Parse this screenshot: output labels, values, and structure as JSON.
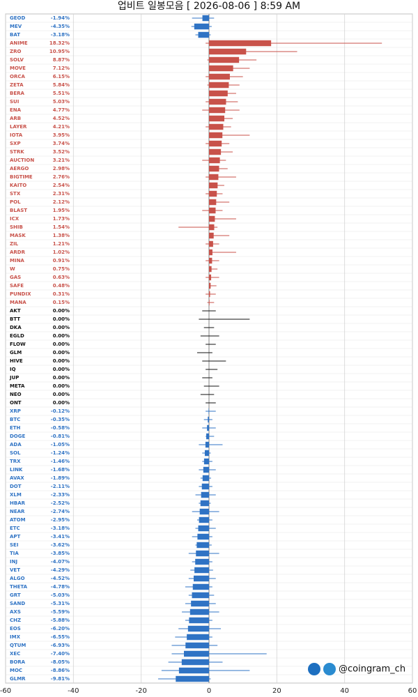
{
  "chart_data": {
    "type": "bar",
    "orientation": "horizontal",
    "title": "업비트 일봉모음 [ 2026-08-06 ]  8:59 AM",
    "watermark": "@coingram_ch",
    "categories": [
      "GEOD",
      "MEV",
      "BAT",
      "ANIME",
      "ZRO",
      "SOLV",
      "MOVE",
      "ORCA",
      "ZETA",
      "BERA",
      "SUI",
      "ENA",
      "ARB",
      "LAYER",
      "IOTA",
      "SXP",
      "STRK",
      "AUCTION",
      "AERGO",
      "BIGTIME",
      "KAITO",
      "STX",
      "POL",
      "BLAST",
      "ICX",
      "SHIB",
      "MASK",
      "ZIL",
      "ARDR",
      "MINA",
      "W",
      "GAS",
      "SAFE",
      "PUNDIX",
      "MANA",
      "AKT",
      "BTT",
      "DKA",
      "EGLD",
      "FLOW",
      "GLM",
      "HIVE",
      "IQ",
      "JUP",
      "META",
      "NEO",
      "ONT",
      "XRP",
      "BTC",
      "ETH",
      "DOGE",
      "ADA",
      "SOL",
      "TRX",
      "LINK",
      "AVAX",
      "DOT",
      "XLM",
      "HBAR",
      "NEAR",
      "ATOM",
      "ETC",
      "APT",
      "SEI",
      "TIA",
      "INJ",
      "VET",
      "ALGO",
      "THETA",
      "GRT",
      "SAND",
      "AXS",
      "CHZ",
      "EOS",
      "IMX",
      "QTUM",
      "XEC",
      "BORA",
      "MOC",
      "GLMR"
    ],
    "values": [
      -1.94,
      -4.35,
      -3.18,
      18.32,
      10.95,
      8.87,
      7.12,
      6.15,
      5.84,
      5.51,
      5.03,
      4.77,
      4.52,
      4.21,
      3.95,
      3.74,
      3.52,
      3.21,
      2.98,
      2.76,
      2.54,
      2.31,
      2.12,
      1.95,
      1.73,
      1.54,
      1.38,
      1.21,
      1.02,
      0.91,
      0.75,
      0.63,
      0.48,
      0.31,
      0.15,
      0,
      0,
      0,
      0,
      0,
      0,
      0,
      0,
      0,
      0,
      0,
      0,
      -0.12,
      -0.35,
      -0.58,
      -0.81,
      -1.05,
      -1.24,
      -1.46,
      -1.68,
      -1.89,
      -2.11,
      -2.33,
      -2.52,
      -2.74,
      -2.95,
      -3.18,
      -3.41,
      -3.62,
      -3.85,
      -4.07,
      -4.29,
      -4.52,
      -4.78,
      -5.03,
      -5.31,
      -5.59,
      -5.88,
      -6.2,
      -6.55,
      -6.93,
      -7.4,
      -8.05,
      -8.86,
      -9.81
    ],
    "value_labels": [
      "-1.94%",
      "-4.35%",
      "-3.18%",
      "18.32%",
      "10.95%",
      "8.87%",
      "7.12%",
      "6.15%",
      "5.84%",
      "5.51%",
      "5.03%",
      "4.77%",
      "4.52%",
      "4.21%",
      "3.95%",
      "3.74%",
      "3.52%",
      "3.21%",
      "2.98%",
      "2.76%",
      "2.54%",
      "2.31%",
      "2.12%",
      "1.95%",
      "1.73%",
      "1.54%",
      "1.38%",
      "1.21%",
      "1.02%",
      "0.91%",
      "0.75%",
      "0.63%",
      "0.48%",
      "0.31%",
      "0.15%",
      "0.00%",
      "0.00%",
      "0.00%",
      "0.00%",
      "0.00%",
      "0.00%",
      "0.00%",
      "0.00%",
      "0.00%",
      "0.00%",
      "0.00%",
      "0.00%",
      "-0.12%",
      "-0.35%",
      "-0.58%",
      "-0.81%",
      "-1.05%",
      "-1.24%",
      "-1.46%",
      "-1.68%",
      "-1.89%",
      "-2.11%",
      "-2.33%",
      "-2.52%",
      "-2.74%",
      "-2.95%",
      "-3.18%",
      "-3.41%",
      "-3.62%",
      "-3.85%",
      "-4.07%",
      "-4.29%",
      "-4.52%",
      "-4.78%",
      "-5.03%",
      "-5.31%",
      "-5.59%",
      "-5.88%",
      "-6.20%",
      "-6.55%",
      "-6.93%",
      "-7.40%",
      "-8.05%",
      "-8.86%",
      "-9.81%"
    ],
    "lows": [
      -5,
      -5.2,
      -4,
      -1,
      0,
      -0.5,
      0,
      -1,
      -0.5,
      0,
      -1,
      -2,
      0,
      -1,
      0,
      -1,
      0,
      -2,
      0,
      -1,
      0,
      -1,
      0,
      -2,
      0,
      -9,
      0,
      -1,
      0,
      -1,
      0,
      -1,
      0,
      -1,
      -0.5,
      -2,
      -3,
      -1.5,
      -2.5,
      -1,
      -3.5,
      -2,
      -1,
      -2,
      -1.5,
      -2.5,
      -1,
      -1,
      -1.5,
      -2,
      -1,
      -3,
      -2,
      -2,
      -3,
      -2.5,
      -3,
      -4,
      -3,
      -5,
      -3.5,
      -4,
      -5,
      -4,
      -6,
      -5,
      -5.5,
      -6,
      -7,
      -6,
      -7,
      -8,
      -7,
      -9,
      -10,
      -11,
      -11,
      -12,
      -14,
      -15
    ],
    "highs": [
      1.5,
      0.8,
      0.5,
      51,
      26,
      14,
      12,
      10,
      9,
      8,
      8.5,
      9,
      7,
      6.5,
      12,
      6,
      7,
      5,
      5.5,
      8,
      4.5,
      4,
      6,
      4,
      8,
      2.5,
      6,
      3,
      8,
      3,
      2.5,
      3,
      2.2,
      2,
      1.5,
      2,
      12,
      1.5,
      3,
      2,
      1,
      5,
      2.5,
      1,
      3,
      1.5,
      2,
      2,
      1,
      2,
      1.5,
      4,
      0.5,
      1,
      2,
      0.6,
      1,
      2,
      0.5,
      3,
      1,
      2,
      1,
      0.8,
      3,
      1,
      1.2,
      2,
      1,
      1.5,
      2,
      3,
      1,
      3.5,
      1,
      2.5,
      17,
      4,
      12,
      0.5
    ],
    "up_color": "#c8524a",
    "down_color": "#2f73c4",
    "flat_color": "#111111",
    "xlim": [
      -60,
      60
    ],
    "xticks": [
      -60,
      -40,
      -20,
      0,
      20,
      40,
      60
    ],
    "grid": true
  }
}
